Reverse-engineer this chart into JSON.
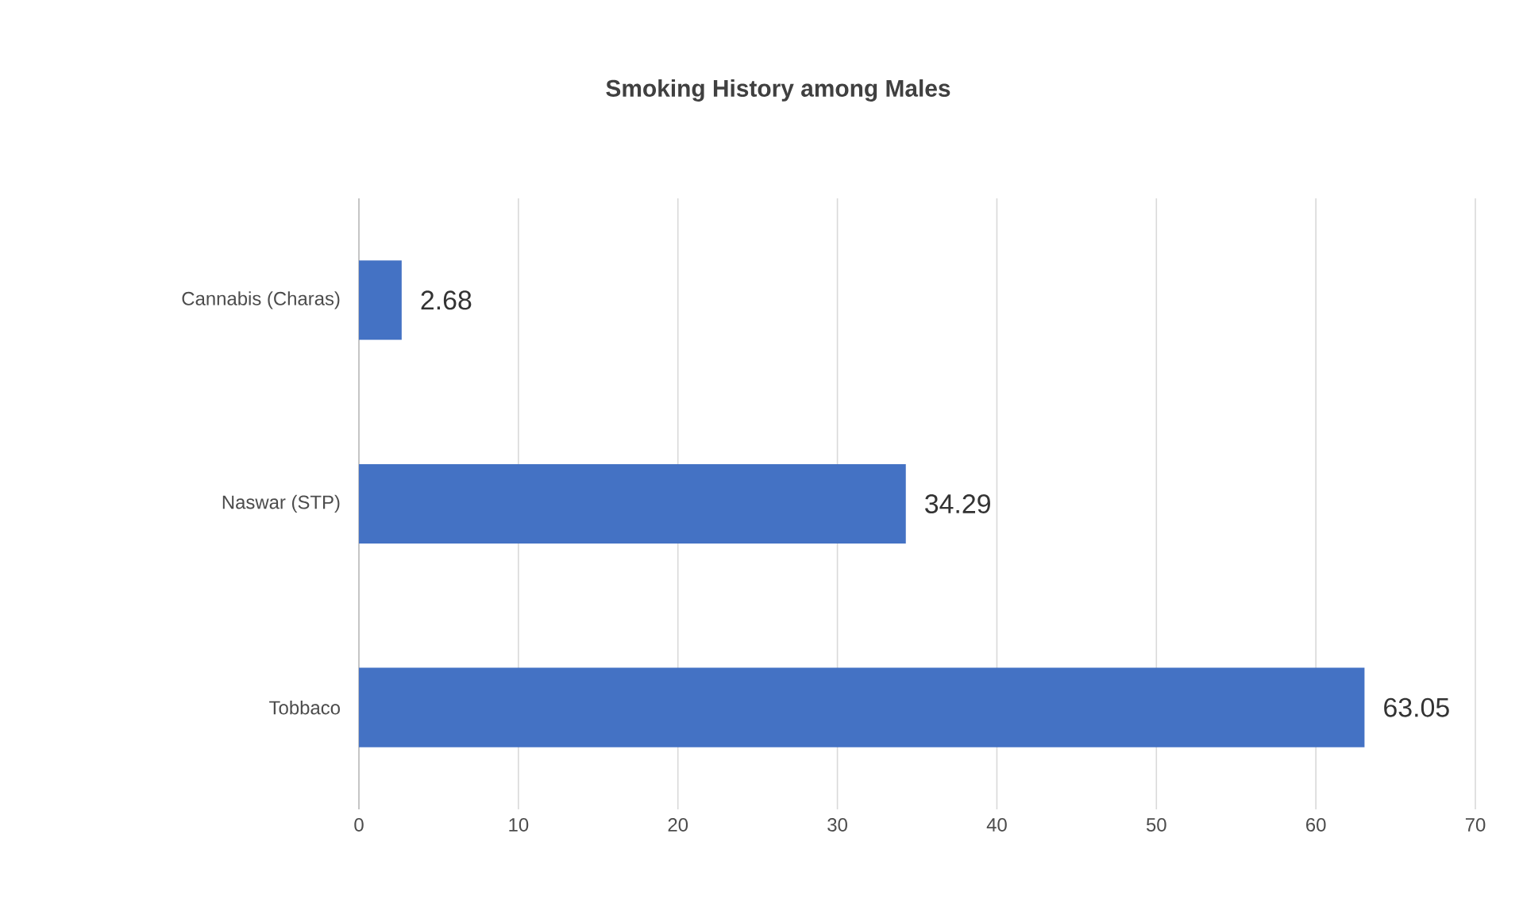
{
  "chart_data": {
    "type": "bar",
    "orientation": "horizontal",
    "title": "Smoking History among Males",
    "categories": [
      "Cannabis (Charas)",
      "Naswar (STP)",
      "Tobbaco"
    ],
    "values": [
      2.68,
      34.29,
      63.05
    ],
    "color": "#4472c4",
    "xlim": [
      0,
      70
    ],
    "xticks": [
      0,
      10,
      20,
      30,
      40,
      50,
      60,
      70
    ],
    "grid": "x",
    "data_labels": true
  }
}
